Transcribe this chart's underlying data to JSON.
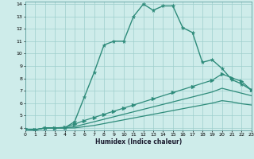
{
  "xlabel": "Humidex (Indice chaleur)",
  "xlim": [
    0,
    23
  ],
  "ylim": [
    3.8,
    14.2
  ],
  "xticks": [
    0,
    1,
    2,
    3,
    4,
    5,
    6,
    7,
    8,
    9,
    10,
    11,
    12,
    13,
    14,
    15,
    16,
    17,
    18,
    19,
    20,
    21,
    22,
    23
  ],
  "yticks": [
    4,
    5,
    6,
    7,
    8,
    9,
    10,
    11,
    12,
    13,
    14
  ],
  "background_color": "#ceecea",
  "grid_color": "#9ecfcc",
  "line_color": "#2e8b7a",
  "curves": [
    {
      "x": [
        0,
        1,
        2,
        3,
        4,
        5,
        6,
        7,
        8,
        9,
        10,
        11,
        12,
        13,
        14,
        15,
        16,
        17,
        18,
        19,
        20,
        21,
        22,
        23
      ],
      "y": [
        3.9,
        3.85,
        4.0,
        4.0,
        4.0,
        4.5,
        6.5,
        8.5,
        10.7,
        11.0,
        11.0,
        13.0,
        14.0,
        13.5,
        13.85,
        13.85,
        12.1,
        11.7,
        9.3,
        9.5,
        8.8,
        7.9,
        7.55,
        7.05
      ],
      "marker": "*",
      "markersize": 3.5,
      "lw": 1.0
    },
    {
      "x": [
        0,
        1,
        2,
        3,
        4,
        5,
        6,
        7,
        8,
        9,
        10,
        11,
        13,
        15,
        17,
        19,
        20,
        21,
        22,
        23
      ],
      "y": [
        3.9,
        3.85,
        4.0,
        4.0,
        4.05,
        4.3,
        4.6,
        4.85,
        5.1,
        5.35,
        5.6,
        5.85,
        6.35,
        6.85,
        7.35,
        7.85,
        8.35,
        8.05,
        7.75,
        7.05
      ],
      "marker": ">",
      "markersize": 3.5,
      "lw": 0.9
    },
    {
      "x": [
        0,
        1,
        2,
        3,
        4,
        5,
        6,
        7,
        8,
        9,
        10,
        11,
        13,
        15,
        17,
        19,
        20,
        21,
        22,
        23
      ],
      "y": [
        3.9,
        3.85,
        4.0,
        4.0,
        4.0,
        4.1,
        4.3,
        4.5,
        4.7,
        4.9,
        5.1,
        5.3,
        5.7,
        6.1,
        6.5,
        6.9,
        7.2,
        7.0,
        6.8,
        6.6
      ],
      "marker": null,
      "markersize": 0,
      "lw": 0.9
    },
    {
      "x": [
        0,
        1,
        2,
        3,
        4,
        5,
        6,
        7,
        8,
        9,
        10,
        11,
        13,
        15,
        17,
        19,
        20,
        21,
        22,
        23
      ],
      "y": [
        3.9,
        3.85,
        4.0,
        4.0,
        4.0,
        4.0,
        4.1,
        4.2,
        4.35,
        4.5,
        4.65,
        4.8,
        5.1,
        5.4,
        5.7,
        6.0,
        6.2,
        6.1,
        5.95,
        5.85
      ],
      "marker": null,
      "markersize": 0,
      "lw": 0.9
    }
  ]
}
